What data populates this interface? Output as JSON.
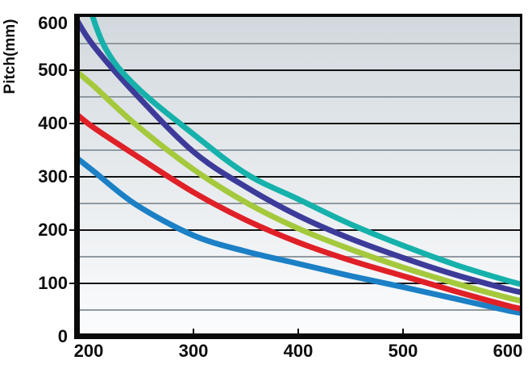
{
  "chart_data": {
    "type": "line",
    "title": "",
    "ylabel": "Pitch(mm)",
    "xlabel": "",
    "x_ticks": [
      200,
      300,
      400,
      500,
      600
    ],
    "y_ticks": [
      0,
      100,
      200,
      300,
      400,
      500,
      600
    ],
    "x_axis_minor_tick_marks_at": [
      300,
      400,
      500
    ],
    "y_axis_outer_tick_marks_at": [
      100,
      200,
      300,
      400,
      500
    ],
    "xlim": [
      189,
      612
    ],
    "ylim": [
      0,
      603
    ],
    "legend": "none",
    "grid": {
      "minor_every": 50,
      "major_every": 100,
      "major_color": "#121212",
      "minor_color": "#8f99a1"
    },
    "plot_bg_gradient_top": "#d2d9de",
    "plot_bg_gradient_bottom": "#fbfcfd",
    "axis_color": "#0a0a0a",
    "series": [
      {
        "name": "curve-blue",
        "color": "#1b80c5",
        "points": [
          [
            187,
            338
          ],
          [
            205,
            310
          ],
          [
            245,
            248
          ],
          [
            300,
            190
          ],
          [
            350,
            160
          ],
          [
            400,
            137
          ],
          [
            450,
            114
          ],
          [
            500,
            93
          ],
          [
            550,
            71
          ],
          [
            600,
            49
          ],
          [
            614,
            44
          ]
        ]
      },
      {
        "name": "curve-red",
        "color": "#e02027",
        "points": [
          [
            187,
            420
          ],
          [
            205,
            392
          ],
          [
            245,
            340
          ],
          [
            300,
            271
          ],
          [
            350,
            219
          ],
          [
            400,
            177
          ],
          [
            450,
            143
          ],
          [
            500,
            114
          ],
          [
            550,
            85
          ],
          [
            600,
            58
          ],
          [
            614,
            52
          ]
        ]
      },
      {
        "name": "curve-green",
        "color": "#a5c93c",
        "points": [
          [
            187,
            500
          ],
          [
            205,
            470
          ],
          [
            245,
            398
          ],
          [
            300,
            314
          ],
          [
            350,
            252
          ],
          [
            400,
            203
          ],
          [
            450,
            164
          ],
          [
            500,
            130
          ],
          [
            550,
            100
          ],
          [
            600,
            73
          ],
          [
            614,
            67
          ]
        ]
      },
      {
        "name": "curve-navy",
        "color": "#3d3b99",
        "points": [
          [
            187,
            600
          ],
          [
            205,
            545
          ],
          [
            245,
            455
          ],
          [
            300,
            347
          ],
          [
            350,
            281
          ],
          [
            400,
            227
          ],
          [
            450,
            184
          ],
          [
            500,
            148
          ],
          [
            550,
            116
          ],
          [
            600,
            89
          ],
          [
            614,
            83
          ]
        ]
      },
      {
        "name": "curve-teal",
        "color": "#16b1ab",
        "points": [
          [
            195,
            655
          ],
          [
            215,
            545
          ],
          [
            245,
            470
          ],
          [
            300,
            380
          ],
          [
            350,
            306
          ],
          [
            400,
            258
          ],
          [
            450,
            211
          ],
          [
            500,
            171
          ],
          [
            550,
            135
          ],
          [
            600,
            105
          ],
          [
            614,
            98
          ]
        ]
      }
    ]
  }
}
